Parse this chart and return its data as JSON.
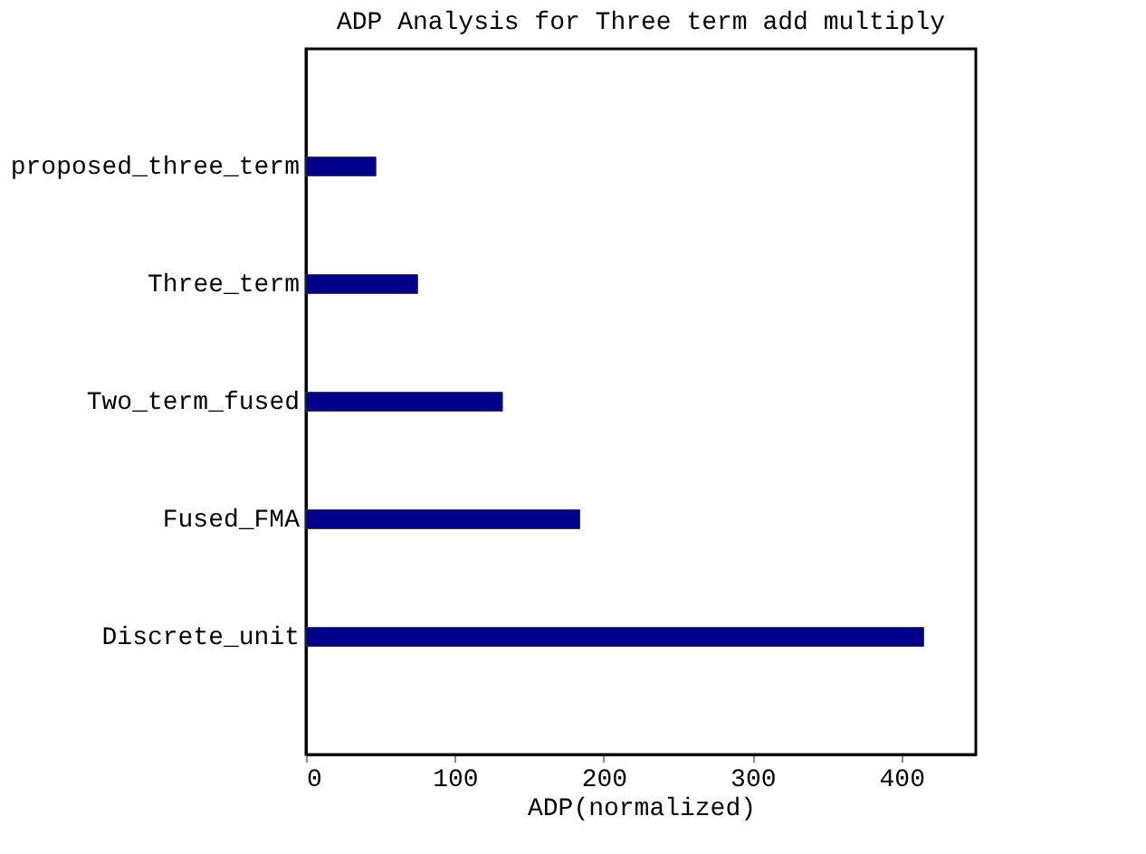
{
  "chart_data": {
    "type": "bar",
    "orientation": "horizontal",
    "title": "ADP Analysis for Three term add multiply",
    "xlabel": "ADP(normalized)",
    "categories": [
      "proposed_three_term",
      "Three_term",
      "Two_term_fused",
      "Fused_FMA",
      "Discrete_unit"
    ],
    "values": [
      47,
      75,
      132,
      184,
      415
    ],
    "color": "#00008b",
    "xlim": [
      0,
      450
    ],
    "xticks": [
      0,
      100,
      200,
      300,
      400
    ],
    "grid": false
  }
}
